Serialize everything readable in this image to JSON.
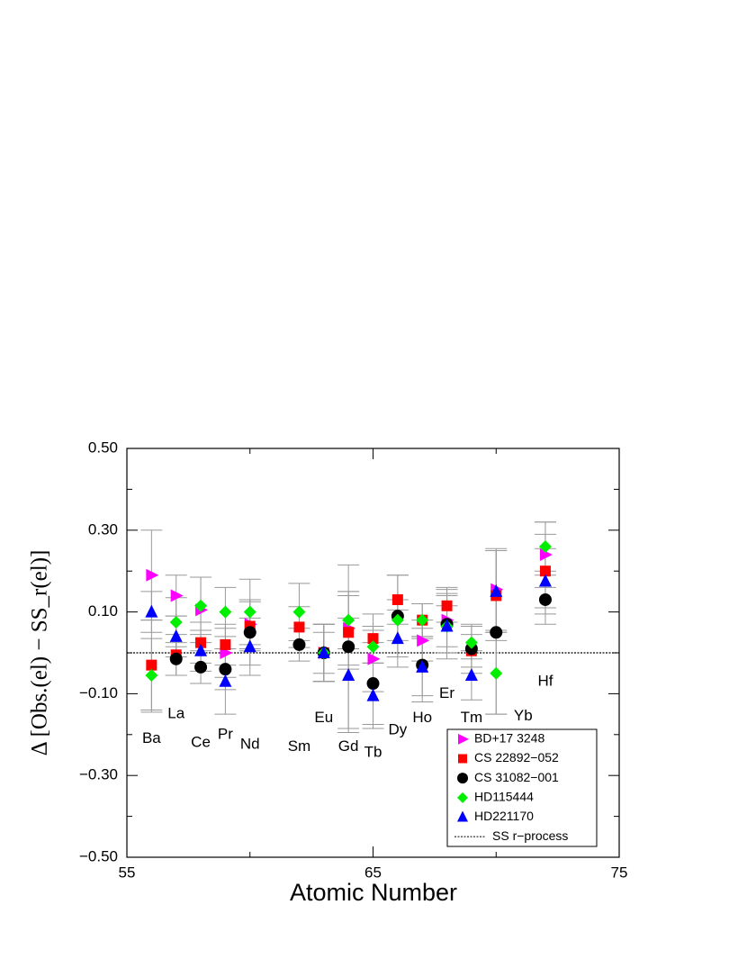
{
  "chart_data": {
    "type": "scatter",
    "xlabel": "Atomic Number",
    "ylabel": "Δ [Obs.(el) − SS_r(el)]",
    "x": [
      56,
      57,
      58,
      59,
      60,
      62,
      63,
      64,
      65,
      66,
      67,
      68,
      69,
      70,
      72
    ],
    "series": [
      {
        "name": "BD+17 3248",
        "color": "#ff00ff",
        "marker": "triangle-right",
        "values": [
          0.19,
          0.14,
          0.105,
          0.0,
          0.07,
          null,
          0.0,
          0.06,
          -0.015,
          null,
          0.03,
          0.08,
          null,
          0.155,
          0.24
        ],
        "errors": [
          0.11,
          0.05,
          0.08,
          0.06,
          0.06,
          null,
          0.05,
          0.09,
          0.08,
          null,
          0.05,
          0.08,
          null,
          0.1,
          0.08
        ]
      },
      {
        "name": "CS 22892−052",
        "color": "#ff0000",
        "marker": "square",
        "values": [
          -0.03,
          -0.005,
          0.025,
          0.02,
          0.065,
          0.063,
          0.0,
          0.05,
          0.035,
          0.13,
          0.08,
          0.115,
          0.005,
          0.14,
          0.2
        ],
        "errors": [
          0.11,
          0.05,
          0.05,
          0.05,
          0.06,
          0.05,
          0.07,
          0.09,
          0.06,
          0.06,
          0.04,
          0.04,
          0.04,
          0.11,
          0.09
        ]
      },
      {
        "name": "CS 31082−001",
        "color": "#000000",
        "marker": "circle",
        "values": [
          null,
          -0.015,
          -0.035,
          -0.04,
          0.05,
          0.02,
          0.0,
          0.015,
          -0.075,
          0.09,
          -0.03,
          0.07,
          0.01,
          0.05,
          0.13
        ],
        "errors": [
          null,
          0.04,
          0.04,
          0.05,
          0.08,
          0.04,
          0.07,
          0.2,
          0.1,
          0.1,
          0.09,
          0.07,
          0.06,
          0.2,
          0.06
        ]
      },
      {
        "name": "HD115444",
        "color": "#00ee00",
        "marker": "diamond",
        "values": [
          -0.055,
          0.075,
          0.115,
          0.1,
          0.1,
          0.1,
          0.0,
          0.08,
          0.015,
          0.08,
          0.08,
          0.065,
          0.025,
          -0.05,
          0.26
        ],
        "errors": [
          0.09,
          0.06,
          0.07,
          0.06,
          0.08,
          0.07,
          0.07,
          0.07,
          0.04,
          0.05,
          0.04,
          0.08,
          0.04,
          0.1,
          0.06
        ]
      },
      {
        "name": "HD221170",
        "color": "#0000ff",
        "marker": "triangle-up",
        "values": [
          0.1,
          0.04,
          0.005,
          -0.07,
          0.015,
          null,
          0.0,
          -0.055,
          -0.105,
          0.035,
          -0.035,
          0.065,
          -0.055,
          0.15,
          0.175
        ],
        "errors": [
          0.05,
          0.05,
          0.05,
          0.08,
          0.07,
          null,
          0.07,
          0.14,
          0.08,
          0.07,
          0.07,
          0.05,
          0.06,
          0.1,
          0.08
        ]
      }
    ],
    "reference_line": {
      "name": "SS r−process",
      "y": 0
    },
    "annotations": [
      {
        "text": "Ba",
        "x": 56,
        "y": -0.21
      },
      {
        "text": "La",
        "x": 57,
        "y": -0.15
      },
      {
        "text": "Ce",
        "x": 58,
        "y": -0.22
      },
      {
        "text": "Pr",
        "x": 59,
        "y": -0.2
      },
      {
        "text": "Nd",
        "x": 60,
        "y": -0.225
      },
      {
        "text": "Sm",
        "x": 62,
        "y": -0.23
      },
      {
        "text": "Eu",
        "x": 63,
        "y": -0.16
      },
      {
        "text": "Gd",
        "x": 64,
        "y": -0.23
      },
      {
        "text": "Tb",
        "x": 65,
        "y": -0.245
      },
      {
        "text": "Dy",
        "x": 66,
        "y": -0.19
      },
      {
        "text": "Ho",
        "x": 67,
        "y": -0.16
      },
      {
        "text": "Er",
        "x": 68,
        "y": -0.1
      },
      {
        "text": "Tm",
        "x": 69,
        "y": -0.16
      },
      {
        "text": "Yb",
        "x": 71.1,
        "y": -0.155
      },
      {
        "text": "Hf",
        "x": 72,
        "y": -0.07
      }
    ],
    "xlim": [
      55,
      75
    ],
    "xticks": [
      55,
      65,
      75
    ],
    "xminor": [
      60,
      70
    ],
    "ylim": [
      -0.5,
      0.5
    ],
    "yticks": [
      {
        "value": 0.5,
        "label": "0.50"
      },
      {
        "value": 0.3,
        "label": "0.30"
      },
      {
        "value": 0.1,
        "label": "0.10"
      },
      {
        "value": -0.1,
        "label": "−0.10"
      },
      {
        "value": -0.3,
        "label": "−0.30"
      },
      {
        "value": -0.5,
        "label": "−0.50"
      }
    ],
    "yminor": [
      0.4,
      0.2,
      0,
      -0.2,
      -0.4
    ],
    "legend": "lower right",
    "errorbar_color": "#999999"
  }
}
